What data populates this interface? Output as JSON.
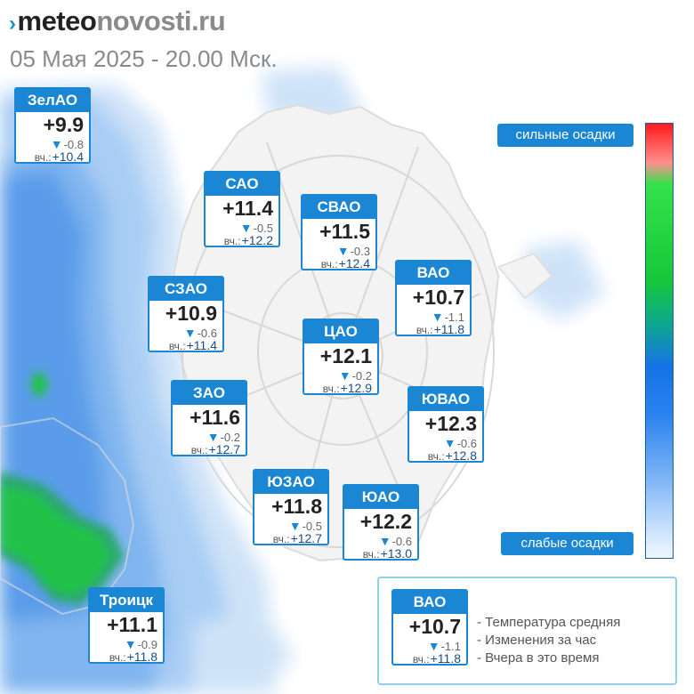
{
  "header": {
    "logo_mark": "›",
    "logo_part1": "meteo",
    "logo_part2": "novosti.ru",
    "subtitle": "05 Мая 2025 - 20.00 Мск."
  },
  "colors": {
    "accent": "#1a86d4",
    "precip_light": "#a7cdf4",
    "precip_medium": "#4f92e6",
    "precip_heavy": "#17c738",
    "legend_border": "#8fd0e6"
  },
  "scale": {
    "top_label": "сильные осадки",
    "bottom_label": "слабые осадки"
  },
  "yesterday_label": "вч.:",
  "districts": [
    {
      "id": "zelao",
      "name": "ЗелАО",
      "temp": "+9.9",
      "change": "-0.8",
      "trend": "down",
      "yesterday": "+10.4"
    },
    {
      "id": "sao",
      "name": "САО",
      "temp": "+11.4",
      "change": "-0.5",
      "trend": "down",
      "yesterday": "+12.2"
    },
    {
      "id": "svao",
      "name": "СВАО",
      "temp": "+11.5",
      "change": "-0.3",
      "trend": "down",
      "yesterday": "+12.4"
    },
    {
      "id": "vao",
      "name": "ВАО",
      "temp": "+10.7",
      "change": "-1.1",
      "trend": "down",
      "yesterday": "+11.8"
    },
    {
      "id": "szao",
      "name": "СЗАО",
      "temp": "+10.9",
      "change": "-0.6",
      "trend": "down",
      "yesterday": "+11.4"
    },
    {
      "id": "tsao",
      "name": "ЦАО",
      "temp": "+12.1",
      "change": "-0.2",
      "trend": "down",
      "yesterday": "+12.9"
    },
    {
      "id": "zao",
      "name": "ЗАО",
      "temp": "+11.6",
      "change": "-0.2",
      "trend": "down",
      "yesterday": "+12.7"
    },
    {
      "id": "yuvao",
      "name": "ЮВАО",
      "temp": "+12.3",
      "change": "-0.6",
      "trend": "down",
      "yesterday": "+12.8"
    },
    {
      "id": "yuzao",
      "name": "ЮЗАО",
      "temp": "+11.8",
      "change": "-0.5",
      "trend": "down",
      "yesterday": "+12.7"
    },
    {
      "id": "yuao",
      "name": "ЮАО",
      "temp": "+12.2",
      "change": "-0.6",
      "trend": "down",
      "yesterday": "+13.0"
    },
    {
      "id": "troitsk",
      "name": "Троицк",
      "temp": "+11.1",
      "change": "-0.9",
      "trend": "down",
      "yesterday": "+11.8"
    }
  ],
  "legend": {
    "sample": {
      "name": "ВАО",
      "temp": "+10.7",
      "change": "-1.1",
      "trend": "down",
      "yesterday": "+11.8"
    },
    "items": [
      "- Температура средняя",
      "- Изменения за час",
      "- Вчера в это время"
    ]
  }
}
